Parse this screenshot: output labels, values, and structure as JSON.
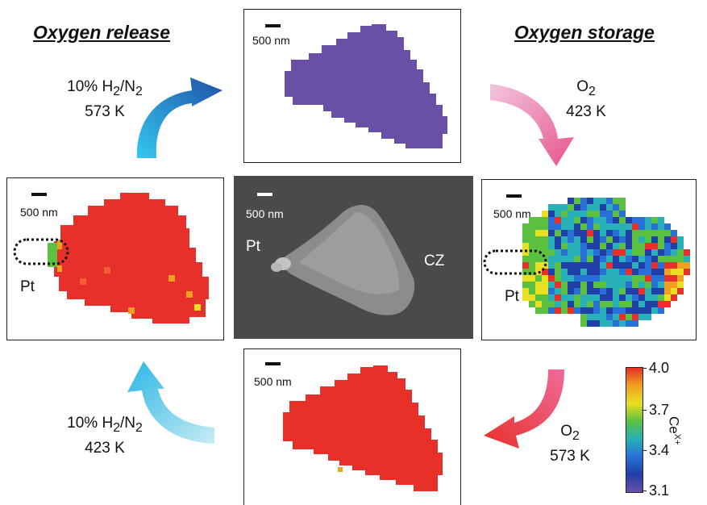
{
  "headings": {
    "left": "Oxygen release",
    "right": "Oxygen storage"
  },
  "conditions": {
    "top_left": {
      "line1": "10% H",
      "sub1": "2",
      "mid": "/N",
      "sub2": "2",
      "line2": "573 K"
    },
    "top_right": {
      "line1": "O",
      "sub1": "2",
      "line2": "423 K"
    },
    "bottom_left": {
      "line1": "10% H",
      "sub1": "2",
      "mid": "/N",
      "sub2": "2",
      "line2": "423 K"
    },
    "bottom_right": {
      "line1": "O",
      "sub1": "2",
      "line2": "573 K"
    }
  },
  "panels": {
    "top": {
      "scale_label": "500 nm",
      "map_color": "#6a4fa6"
    },
    "left": {
      "scale_label": "500 nm",
      "pt_label": "Pt",
      "map_color": "#e8302a"
    },
    "center": {
      "scale_label": "500 nm",
      "pt_label": "Pt",
      "cz_label": "CZ"
    },
    "right": {
      "scale_label": "500 nm",
      "pt_label": "Pt"
    },
    "bottom": {
      "scale_label": "500 nm",
      "map_color": "#e8302a"
    }
  },
  "colorbar": {
    "title": "Ce",
    "title_sup": "X+",
    "ticks": [
      "4.0",
      "3.7",
      "3.4",
      "3.1"
    ],
    "colors": [
      "#e8302a",
      "#f0a020",
      "#e8e020",
      "#5cc040",
      "#28b0b8",
      "#2870d8",
      "#2040a8",
      "#6a4fa6"
    ]
  },
  "arrows": {
    "top_left_colors": [
      "#35c8ef",
      "#1f4fa8"
    ],
    "top_right_colors": [
      "#f2c6de",
      "#e8548e"
    ],
    "bottom_right_colors": [
      "#f06a9a",
      "#e8302a"
    ],
    "bottom_left_colors": [
      "#c8ecf4",
      "#2ab6e4"
    ]
  }
}
